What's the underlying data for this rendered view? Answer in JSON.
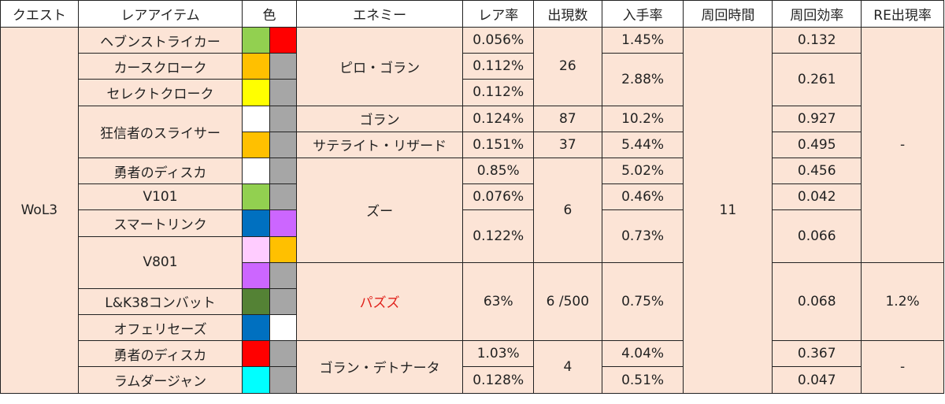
{
  "colors": {
    "background": "#fce4d6",
    "header_background": "#ffffff",
    "border": "#222222",
    "highlight_text": "#e0201a"
  },
  "headers": [
    "クエスト",
    "レアアイテム",
    "色",
    "エネミー",
    "レア率",
    "出現数",
    "入手率",
    "周回時間",
    "周回効率",
    "RE出現率"
  ],
  "quest": "WoL3",
  "cycle_time": "11",
  "items": [
    {
      "name": "ヘブンストライカー",
      "colors": [
        "#92d050",
        "#ff0000"
      ],
      "rare_rate": "0.056%",
      "obtain_rate": "1.45%",
      "efficiency": "0.132"
    },
    {
      "name": "カースクローク",
      "colors": [
        "#ffc000",
        "#a6a6a6"
      ],
      "rare_rate": "0.112%",
      "obtain_rate": "2.88%",
      "efficiency": "0.261"
    },
    {
      "name": "セレクトクローク",
      "colors": [
        "#ffff00",
        "#a6a6a6"
      ],
      "rare_rate": "0.112%"
    },
    {
      "name": "狂信者のスライサー",
      "colors_a": [
        "#ffffff",
        "#a6a6a6"
      ],
      "colors_b": [
        "#ffc000",
        "#a6a6a6"
      ]
    },
    {
      "name": "勇者のディスカ",
      "colors": [
        "#ffffff",
        "#a6a6a6"
      ],
      "rare_rate": "0.85%",
      "obtain_rate": "5.02%",
      "efficiency": "0.456"
    },
    {
      "name": "V101",
      "colors": [
        "#92d050",
        "#a6a6a6"
      ],
      "rare_rate": "0.076%",
      "obtain_rate": "0.46%",
      "efficiency": "0.042"
    },
    {
      "name": "スマートリンク",
      "colors": [
        "#0070c0",
        "#cc66ff"
      ],
      "rare_rate": "0.122%",
      "obtain_rate": "0.73%",
      "efficiency": "0.066"
    },
    {
      "name": "V801",
      "colors_a": [
        "#ffccff",
        "#ffc000"
      ],
      "colors_b": [
        "#cc66ff",
        "#a6a6a6"
      ]
    },
    {
      "name": "L&K38コンバット",
      "colors": [
        "#548235",
        "#a6a6a6"
      ],
      "rare_rate": "63%",
      "spawn": "6 /500",
      "obtain_rate": "0.75%",
      "efficiency": "0.068",
      "re_rate": "1.2%"
    },
    {
      "name": "オフェリセーズ",
      "colors": [
        "#0070c0",
        "#ffffff"
      ]
    },
    {
      "name": "勇者のディスカ",
      "colors": [
        "#ff0000",
        "#a6a6a6"
      ],
      "rare_rate": "1.03%",
      "obtain_rate": "4.04%",
      "efficiency": "0.367"
    },
    {
      "name": "ラムダージャン",
      "colors": [
        "#00ffff",
        "#a6a6a6"
      ],
      "rare_rate": "0.128%",
      "obtain_rate": "0.51%",
      "efficiency": "0.047"
    }
  ],
  "slicer": {
    "enemy_1": "ゴラン",
    "rare_rate_1": "0.124%",
    "spawn_1": "87",
    "obtain_rate_1": "10.2%",
    "efficiency_1": "0.927",
    "enemy_2": "サテライト・リザード",
    "rare_rate_2": "0.151%",
    "spawn_2": "37",
    "obtain_rate_2": "5.44%",
    "efficiency_2": "0.495"
  },
  "enemies": {
    "group1": "ピロ・ゴラン",
    "group1_spawn": "26",
    "group2": "ズー",
    "group2_spawn": "6",
    "group3": "パズズ",
    "group4": "ゴラン・デトナータ",
    "group4_spawn": "4"
  },
  "re_rate_dash_top": "-",
  "re_rate_dash_bottom": "-"
}
